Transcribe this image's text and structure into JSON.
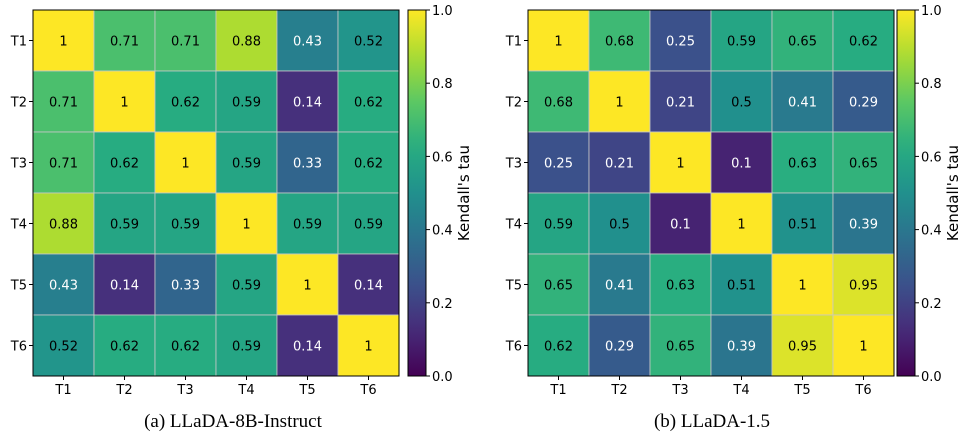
{
  "chart_data": [
    {
      "type": "heatmap",
      "caption": "(a) LLaDA-8B-Instruct",
      "x_tick_labels": [
        "T1",
        "T2",
        "T3",
        "T4",
        "T5",
        "T6"
      ],
      "y_tick_labels": [
        "T1",
        "T2",
        "T3",
        "T4",
        "T5",
        "T6"
      ],
      "values": [
        [
          1.0,
          0.71,
          0.71,
          0.88,
          0.43,
          0.52
        ],
        [
          0.71,
          1.0,
          0.62,
          0.59,
          0.14,
          0.62
        ],
        [
          0.71,
          0.62,
          1.0,
          0.59,
          0.33,
          0.62
        ],
        [
          0.88,
          0.59,
          0.59,
          1.0,
          0.59,
          0.59
        ],
        [
          0.43,
          0.14,
          0.33,
          0.59,
          1.0,
          0.14
        ],
        [
          0.52,
          0.62,
          0.62,
          0.59,
          0.14,
          1.0
        ]
      ],
      "colorbar": {
        "label": "Kendall's tau",
        "range": [
          0.0,
          1.0
        ],
        "ticks": [
          "0.0",
          "0.2",
          "0.4",
          "0.6",
          "0.8",
          "1.0"
        ],
        "colormap": "viridis"
      }
    },
    {
      "type": "heatmap",
      "caption": "(b) LLaDA-1.5",
      "x_tick_labels": [
        "T1",
        "T2",
        "T3",
        "T4",
        "T5",
        "T6"
      ],
      "y_tick_labels": [
        "T1",
        "T2",
        "T3",
        "T4",
        "T5",
        "T6"
      ],
      "values": [
        [
          1.0,
          0.68,
          0.25,
          0.59,
          0.65,
          0.62
        ],
        [
          0.68,
          1.0,
          0.21,
          0.5,
          0.41,
          0.29
        ],
        [
          0.25,
          0.21,
          1.0,
          0.1,
          0.63,
          0.65
        ],
        [
          0.59,
          0.5,
          0.1,
          1.0,
          0.51,
          0.39
        ],
        [
          0.65,
          0.41,
          0.63,
          0.51,
          1.0,
          0.95
        ],
        [
          0.62,
          0.29,
          0.65,
          0.39,
          0.95,
          1.0
        ]
      ],
      "colorbar": {
        "label": "Kendall's tau",
        "range": [
          0.0,
          1.0
        ],
        "ticks": [
          "0.0",
          "0.2",
          "0.4",
          "0.6",
          "0.8",
          "1.0"
        ],
        "colormap": "viridis"
      }
    }
  ]
}
